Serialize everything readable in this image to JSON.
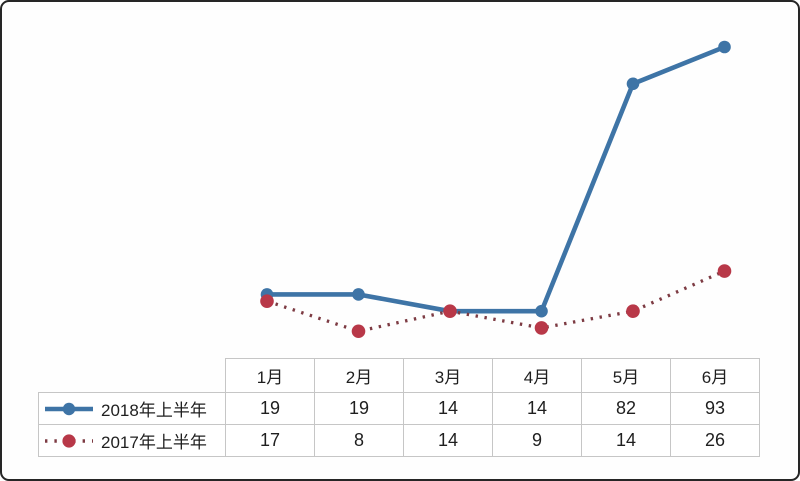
{
  "chart_data": {
    "type": "line",
    "title": "",
    "xlabel": "",
    "ylabel": "",
    "categories": [
      "1月",
      "2月",
      "3月",
      "4月",
      "5月",
      "6月"
    ],
    "series": [
      {
        "name": "2018年上半年",
        "values": [
          19,
          19,
          14,
          14,
          82,
          93
        ],
        "style": "solid",
        "line_color": "#3e74a6",
        "marker_color": "#3e74a6"
      },
      {
        "name": "2017年上半年",
        "values": [
          17,
          8,
          14,
          9,
          14,
          26
        ],
        "style": "dotted",
        "line_color": "#7d3b43",
        "marker_color": "#b83848"
      }
    ],
    "ylim": [
      0,
      100
    ],
    "grid": false,
    "legend_position": "data-table-left",
    "data_table": true
  }
}
